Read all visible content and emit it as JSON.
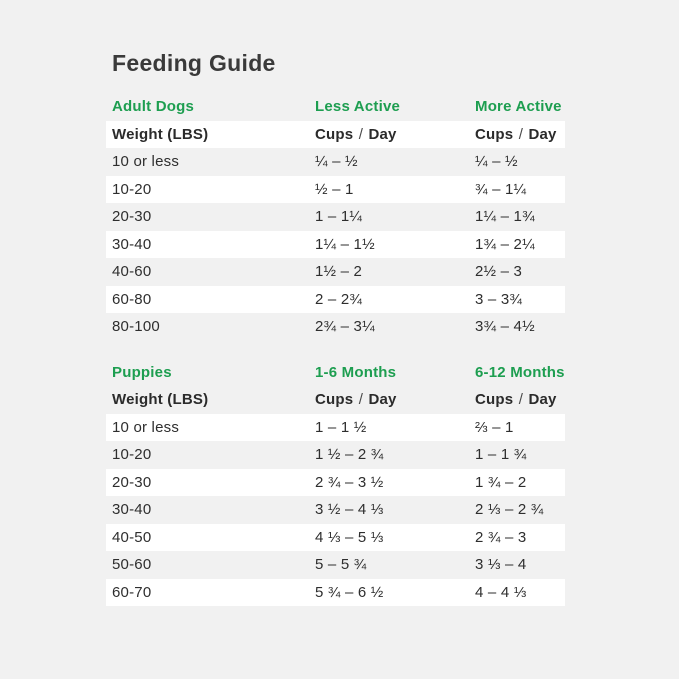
{
  "page": {
    "title": "Feeding Guide",
    "colors": {
      "accent_green": "#1d9e50",
      "background": "#f1f1f1",
      "stripe": "#ffffff",
      "text": "#303030"
    }
  },
  "tables": [
    {
      "section_label": "Adult Dogs",
      "col2_label": "Less Active",
      "col3_label": "More Active",
      "subheader": {
        "col1": "Weight (LBS)",
        "cups": "Cups",
        "slash": "/",
        "day": "Day"
      },
      "rows": [
        {
          "weight": "10 or less",
          "col2": "¼ – ½",
          "col3": "¼ – ½"
        },
        {
          "weight": "10-20",
          "col2": "½ – 1",
          "col3": "¾ – 1¼"
        },
        {
          "weight": "20-30",
          "col2": "1 – 1¼",
          "col3": "1¼ – 1¾"
        },
        {
          "weight": "30-40",
          "col2": "1¼ – 1½",
          "col3": "1¾ – 2¼"
        },
        {
          "weight": "40-60",
          "col2": "1½ – 2",
          "col3": "2½ – 3"
        },
        {
          "weight": "60-80",
          "col2": "2 – 2¾",
          "col3": "3 – 3¾"
        },
        {
          "weight": "80-100",
          "col2": "2¾ – 3¼",
          "col3": "3¾ – 4½"
        }
      ]
    },
    {
      "section_label": "Puppies",
      "col2_label": "1-6 Months",
      "col3_label": "6-12 Months",
      "subheader": {
        "col1": "Weight (LBS)",
        "cups": "Cups",
        "slash": "/",
        "day": "Day"
      },
      "rows": [
        {
          "weight": "10 or less",
          "col2": "1 – 1 ½",
          "col3": "⅔ – 1"
        },
        {
          "weight": "10-20",
          "col2": "1 ½ – 2 ¾",
          "col3": "1 – 1 ¾"
        },
        {
          "weight": "20-30",
          "col2": "2 ¾ – 3 ½",
          "col3": "1 ¾ – 2"
        },
        {
          "weight": "30-40",
          "col2": "3 ½ – 4 ⅓",
          "col3": "2 ⅓ – 2 ¾"
        },
        {
          "weight": "40-50",
          "col2": "4 ⅓ – 5 ⅓",
          "col3": "2 ¾ – 3"
        },
        {
          "weight": "50-60",
          "col2": "5 – 5 ¾",
          "col3": "3 ⅓ – 4"
        },
        {
          "weight": "60-70",
          "col2": "5 ¾ – 6 ½",
          "col3": "4 – 4 ⅓"
        }
      ]
    }
  ]
}
